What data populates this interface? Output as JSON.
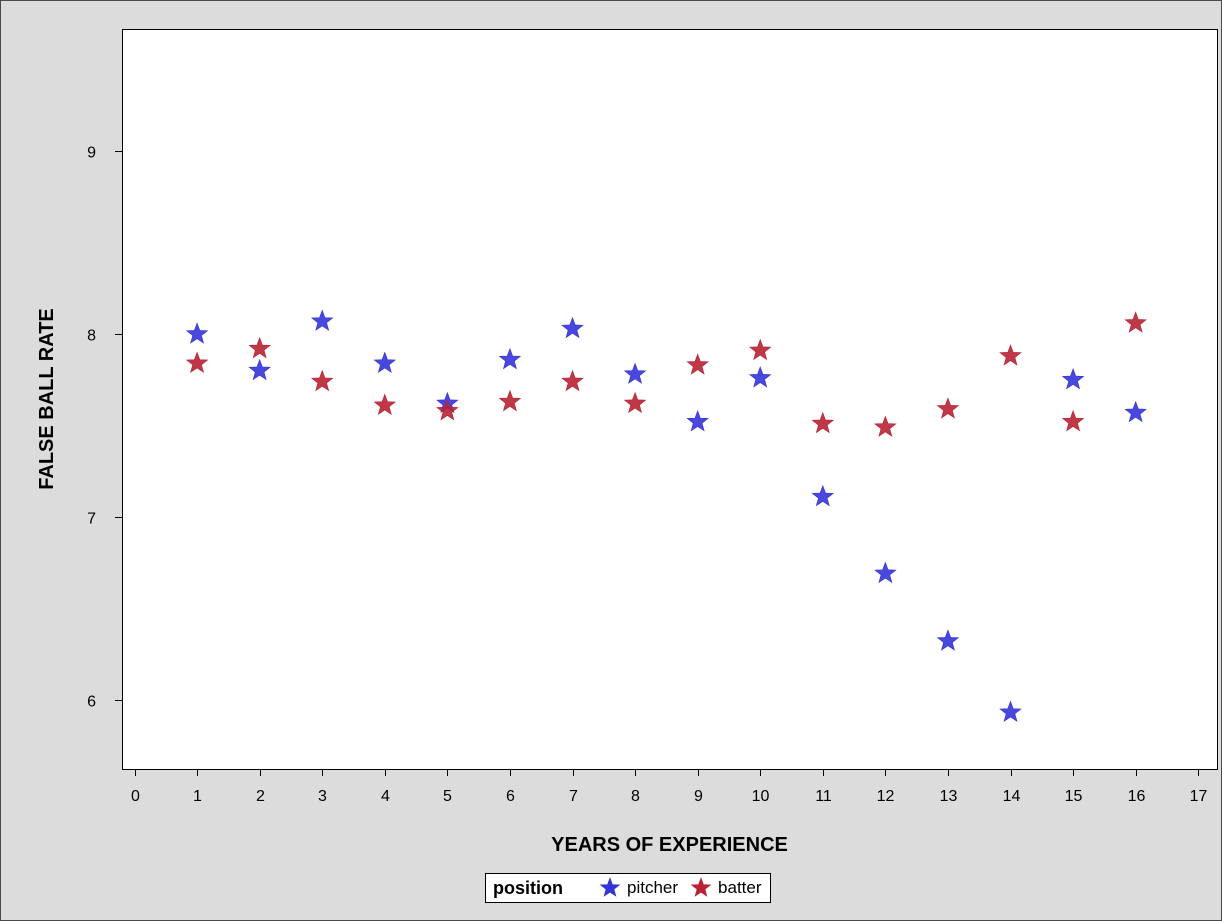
{
  "chart_data": {
    "type": "scatter",
    "title": "",
    "xlabel": "YEARS OF EXPERIENCE",
    "ylabel": "FALSE BALL RATE",
    "xlim": [
      -0.2,
      17.3
    ],
    "ylim": [
      5.62,
      9.67
    ],
    "xticks": [
      "0",
      "1",
      "2",
      "3",
      "4",
      "5",
      "6",
      "7",
      "8",
      "9",
      "10",
      "11",
      "12",
      "13",
      "14",
      "15",
      "16",
      "17"
    ],
    "yticks": [
      "6",
      "7",
      "8",
      "9"
    ],
    "grid": false,
    "legend": {
      "title": "position",
      "placement": "bottom-center",
      "entries": [
        "pitcher",
        "batter"
      ]
    },
    "marker": "star",
    "series": [
      {
        "name": "pitcher",
        "color": "#3434d8",
        "points": [
          {
            "x": 1,
            "y": 8.0
          },
          {
            "x": 2,
            "y": 7.8
          },
          {
            "x": 3,
            "y": 8.07
          },
          {
            "x": 4,
            "y": 7.84
          },
          {
            "x": 5,
            "y": 7.62
          },
          {
            "x": 6,
            "y": 7.86
          },
          {
            "x": 7,
            "y": 8.03
          },
          {
            "x": 8,
            "y": 7.78
          },
          {
            "x": 9,
            "y": 7.52
          },
          {
            "x": 10,
            "y": 7.76
          },
          {
            "x": 11,
            "y": 7.11
          },
          {
            "x": 12,
            "y": 6.69
          },
          {
            "x": 13,
            "y": 6.32
          },
          {
            "x": 14,
            "y": 5.93
          },
          {
            "x": 15,
            "y": 7.75
          },
          {
            "x": 16,
            "y": 7.57
          }
        ]
      },
      {
        "name": "batter",
        "color": "#b82233",
        "points": [
          {
            "x": 1,
            "y": 7.84
          },
          {
            "x": 2,
            "y": 7.92
          },
          {
            "x": 3,
            "y": 7.74
          },
          {
            "x": 4,
            "y": 7.61
          },
          {
            "x": 5,
            "y": 7.58
          },
          {
            "x": 6,
            "y": 7.63
          },
          {
            "x": 7,
            "y": 7.74
          },
          {
            "x": 8,
            "y": 7.62
          },
          {
            "x": 9,
            "y": 7.83
          },
          {
            "x": 10,
            "y": 7.91
          },
          {
            "x": 11,
            "y": 7.51
          },
          {
            "x": 12,
            "y": 7.49
          },
          {
            "x": 13,
            "y": 7.59
          },
          {
            "x": 14,
            "y": 7.88
          },
          {
            "x": 15,
            "y": 7.52
          },
          {
            "x": 16,
            "y": 8.06
          }
        ]
      }
    ]
  }
}
